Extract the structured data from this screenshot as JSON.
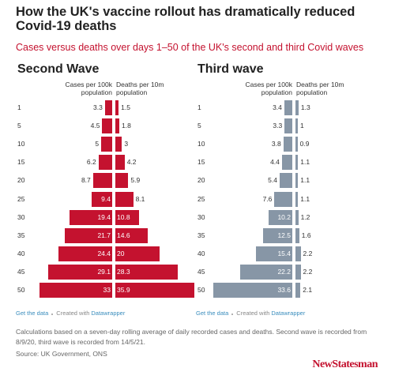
{
  "title": "How the UK's vaccine rollout has dramatically reduced Covid-19 deaths",
  "subtitle": "Cases versus deaths over days 1–50 of the UK's second and third Covid waves",
  "chart_data": [
    {
      "type": "bar",
      "title": "Second Wave",
      "categories": [
        "1",
        "5",
        "10",
        "15",
        "20",
        "25",
        "30",
        "35",
        "40",
        "45",
        "50"
      ],
      "series": [
        {
          "name": "Cases per 100k population",
          "color": "#c4122f",
          "values": [
            3.3,
            4.5,
            5,
            6.2,
            8.7,
            9.4,
            19.4,
            21.7,
            24.4,
            29.1,
            33
          ]
        },
        {
          "name": "Deaths per 10m population",
          "color": "#c4122f",
          "values": [
            1.5,
            1.8,
            3,
            4.2,
            5.9,
            8.1,
            10.8,
            14.6,
            20,
            28.3,
            35.9
          ]
        }
      ],
      "footer": {
        "link": "Get the data",
        "created": "Created with",
        "tool": "Datawrapper"
      }
    },
    {
      "type": "bar",
      "title": "Third wave",
      "categories": [
        "1",
        "5",
        "10",
        "15",
        "20",
        "25",
        "30",
        "35",
        "40",
        "45",
        "50"
      ],
      "series": [
        {
          "name": "Cases per 100k population",
          "color": "#8796a6",
          "values": [
            3.4,
            3.3,
            3.8,
            4.4,
            5.4,
            7.6,
            10.2,
            12.5,
            15.4,
            22.2,
            33.6
          ]
        },
        {
          "name": "Deaths per 10m population",
          "color": "#8796a6",
          "values": [
            1.3,
            1,
            0.9,
            1.1,
            1.1,
            1.1,
            1.2,
            1.6,
            2.2,
            2.2,
            2.1
          ]
        }
      ],
      "footer": {
        "link": "Get the data",
        "created": "Created with",
        "tool": "Datawrapper"
      }
    }
  ],
  "note": "Calculations based on a seven-day rolling average of daily recorded cases and deaths. Second wave is recorded from 8/9/20, third wave is recorded from 14/5/21.",
  "source": "Source: UK Government, ONS",
  "brand": "NewStatesman"
}
